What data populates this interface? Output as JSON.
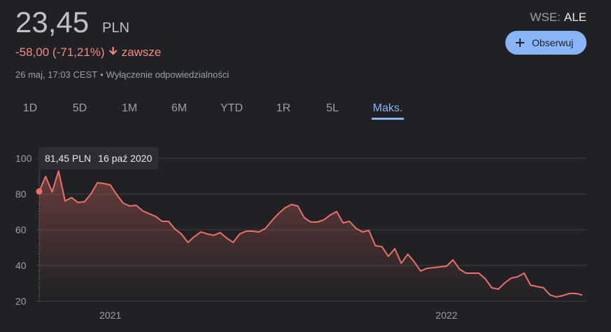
{
  "header": {
    "price": "23,45",
    "currency": "PLN",
    "change": "-58,00 (-71,21%)",
    "period": "zawsze",
    "timestamp": "26 maj, 17:03 CEST",
    "separator": "•",
    "disclaimer": "Wyłączenie odpowiedzialności",
    "exchange": "WSE:",
    "symbol": "ALE",
    "follow_button": "Obserwuj"
  },
  "tabs": {
    "items": [
      "1D",
      "5D",
      "1M",
      "6M",
      "YTD",
      "1R",
      "5L",
      "Maks."
    ],
    "active": "Maks."
  },
  "chart_data": {
    "type": "area",
    "color": "#ee6f68",
    "tooltip": {
      "label": "81,45 PLN",
      "date": "16 paź 2020"
    },
    "categories": [
      null,
      null,
      null,
      null,
      null,
      null,
      null,
      null,
      null,
      null,
      null,
      "2021",
      null,
      null,
      null,
      null,
      null,
      null,
      null,
      null,
      null,
      null,
      null,
      null,
      null,
      null,
      null,
      null,
      null,
      null,
      null,
      null,
      null,
      null,
      null,
      null,
      null,
      null,
      null,
      null,
      null,
      null,
      null,
      null,
      null,
      null,
      null,
      null,
      null,
      null,
      null,
      null,
      null,
      null,
      null,
      null,
      null,
      null,
      null,
      null,
      null,
      null,
      null,
      "2022",
      null,
      null,
      null,
      null,
      null,
      null,
      null,
      null,
      null,
      null,
      null,
      null,
      null,
      null,
      null,
      null,
      null,
      null,
      null,
      null,
      null
    ],
    "values": [
      81.45,
      89.8,
      81.2,
      92.9,
      76.1,
      78.0,
      75.3,
      75.7,
      80.0,
      86.3,
      85.9,
      85.1,
      79.6,
      74.9,
      73.3,
      73.7,
      70.6,
      69.0,
      67.5,
      64.7,
      64.7,
      60.4,
      57.6,
      52.9,
      56.1,
      58.8,
      57.6,
      56.9,
      58.4,
      55.3,
      52.9,
      57.6,
      59.2,
      59.2,
      58.8,
      60.8,
      65.1,
      69.0,
      72.2,
      74.1,
      73.3,
      66.7,
      64.3,
      64.3,
      65.5,
      68.2,
      70.2,
      63.9,
      64.7,
      60.8,
      58.8,
      59.6,
      51.0,
      50.6,
      45.1,
      49.4,
      41.2,
      46.3,
      42.0,
      36.9,
      38.4,
      38.8,
      39.2,
      39.6,
      43.1,
      38.0,
      35.7,
      35.7,
      35.7,
      32.5,
      27.5,
      26.7,
      30.2,
      32.9,
      33.7,
      35.7,
      29.0,
      28.2,
      27.5,
      23.5,
      22.4,
      23.1,
      24.3,
      24.3,
      23.45
    ],
    "ylim": [
      20,
      100
    ],
    "yticks": [
      20,
      40,
      60,
      80,
      100
    ],
    "grid": true
  }
}
